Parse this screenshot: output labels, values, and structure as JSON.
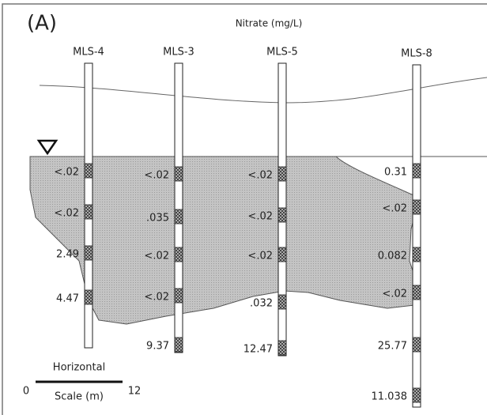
{
  "panel_label": "(A)",
  "title": "Nitrate (mg/L)",
  "wells": [
    {
      "name": "MLS-4",
      "readings": [
        "<.02",
        "<.02",
        "2.49",
        "4.47"
      ]
    },
    {
      "name": "MLS-3",
      "readings": [
        "<.02",
        ".035",
        "<.02",
        "<.02",
        "9.37"
      ]
    },
    {
      "name": "MLS-5",
      "readings": [
        "<.02",
        "<.02",
        "<.02",
        ".032",
        "12.47"
      ]
    },
    {
      "name": "MLS-8",
      "readings": [
        "0.31",
        "<.02",
        "0.082",
        "<.02",
        "25.77",
        "11.038"
      ]
    }
  ],
  "scale": {
    "top_label": "Horizontal",
    "bottom_label": "Scale (m)",
    "start": "0",
    "end": "12"
  }
}
